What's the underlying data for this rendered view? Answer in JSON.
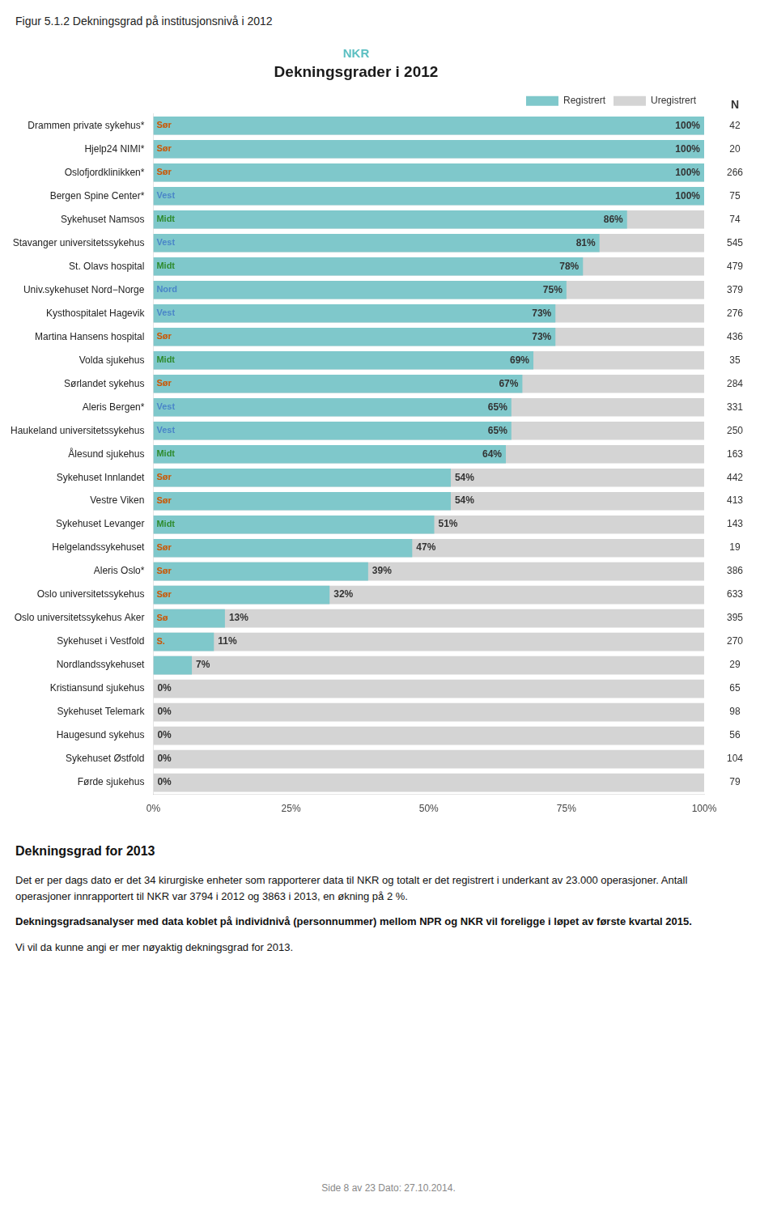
{
  "chart_data": {
    "type": "bar",
    "orientation": "horizontal",
    "fig_title": "Figur 5.1.2 Dekningsgrad på institusjonsnivå i 2012",
    "supertitle": {
      "text": "NKR",
      "color": "#5bbfc2"
    },
    "title": "Dekningsgrader i 2012",
    "categories": [
      "Drammen private sykehus*",
      "Hjelp24 NIMI*",
      "Oslofjordklinikken*",
      "Bergen Spine Center*",
      "Sykehuset Namsos",
      "Stavanger universitetssykehus",
      "St. Olavs hospital",
      "Univ.sykehuset Nord−Norge",
      "Kysthospitalet Hagevik",
      "Martina Hansens hospital",
      "Volda sjukehus",
      "Sørlandet sykehus",
      "Aleris Bergen*",
      "Haukeland universitetssykehus",
      "Ålesund sjukehus",
      "Sykehuset Innlandet",
      "Vestre Viken",
      "Sykehuset Levanger",
      "Helgelandssykehuset",
      "Aleris Oslo*",
      "Oslo universitetssykehus",
      "Oslo universitetssykehus Aker",
      "Sykehuset i Vestfold",
      "Nordlandssykehuset",
      "Kristiansund sjukehus",
      "Sykehuset Telemark",
      "Haugesund sykehus",
      "Sykehuset Østfold",
      "Førde sjukehus"
    ],
    "series": [
      {
        "name": "Registrert",
        "color": "#7fc8cb",
        "values": [
          100,
          100,
          100,
          100,
          86,
          81,
          78,
          75,
          73,
          73,
          69,
          67,
          65,
          65,
          64,
          54,
          54,
          51,
          47,
          39,
          32,
          13,
          11,
          7,
          0,
          0,
          0,
          0,
          0
        ],
        "value_labels": [
          "100%",
          "100%",
          "100%",
          "100%",
          "86%",
          "81%",
          "78%",
          "75%",
          "73%",
          "73%",
          "69%",
          "67%",
          "65%",
          "65%",
          "64%",
          "54%",
          "54%",
          "51%",
          "47%",
          "39%",
          "32%",
          "13%",
          "11%",
          "7%",
          "0%",
          "0%",
          "0%",
          "0%",
          "0%"
        ]
      },
      {
        "name": "Uregistrert",
        "color": "#d4d4d4",
        "values": [
          100,
          100,
          100,
          100,
          100,
          100,
          100,
          100,
          100,
          100,
          100,
          100,
          100,
          100,
          100,
          100,
          100,
          100,
          100,
          100,
          100,
          100,
          100,
          100,
          100,
          100,
          100,
          100,
          100
        ]
      }
    ],
    "stacked": false,
    "data_labels": true,
    "xlim": [
      0,
      100
    ],
    "xticks": [
      {
        "value": 0,
        "label": "0%"
      },
      {
        "value": 25,
        "label": "25%"
      },
      {
        "value": 50,
        "label": "50%"
      },
      {
        "value": 75,
        "label": "75%"
      },
      {
        "value": 100,
        "label": "100%"
      }
    ],
    "grid": false,
    "legend": "upper right",
    "region_labels": [
      "Sør",
      "Sør",
      "Sør",
      "Vest",
      "Midt",
      "Vest",
      "Midt",
      "Nord",
      "Vest",
      "Sør",
      "Midt",
      "Sør",
      "Vest",
      "Vest",
      "Midt",
      "Sør",
      "Sør",
      "Midt",
      "Sør",
      "Sør",
      "Sør",
      "Sø",
      "S.",
      null,
      null,
      null,
      null,
      null,
      null
    ],
    "region_colors": {
      "Sør": "#cc5500",
      "Vest": "#4a86c8",
      "Midt": "#2e8b2e",
      "Nord": "#4a86c8",
      "Sø": "#cc5500",
      "S.": "#cc5500"
    },
    "n_label": "N",
    "n_values": [
      42,
      20,
      266,
      75,
      74,
      545,
      479,
      379,
      276,
      436,
      35,
      284,
      331,
      250,
      163,
      442,
      413,
      143,
      19,
      386,
      633,
      395,
      270,
      29,
      65,
      98,
      56,
      104,
      79
    ],
    "text_heading": "Dekningsgrad for 2013",
    "paragraphs": [
      {
        "text": "Det er per dags dato er det 34 kirurgiske enheter som rapporterer data til NKR og totalt er det registrert i underkant av 23.000 operasjoner. Antall operasjoner innrapportert til NKR var 3794 i 2012 og 3863 i 2013, en økning på 2 %.",
        "bold": false
      },
      {
        "text": "Dekningsgradsanalyser med data koblet på individnivå (personnummer) mellom NPR og NKR vil foreligge i løpet av første kvartal 2015.",
        "bold": true
      },
      {
        "text": "Vi vil da kunne angi er mer nøyaktig dekningsgrad for 2013.",
        "bold": false
      }
    ],
    "footer": "Side 8 av 23    Dato: 27.10.2014."
  }
}
